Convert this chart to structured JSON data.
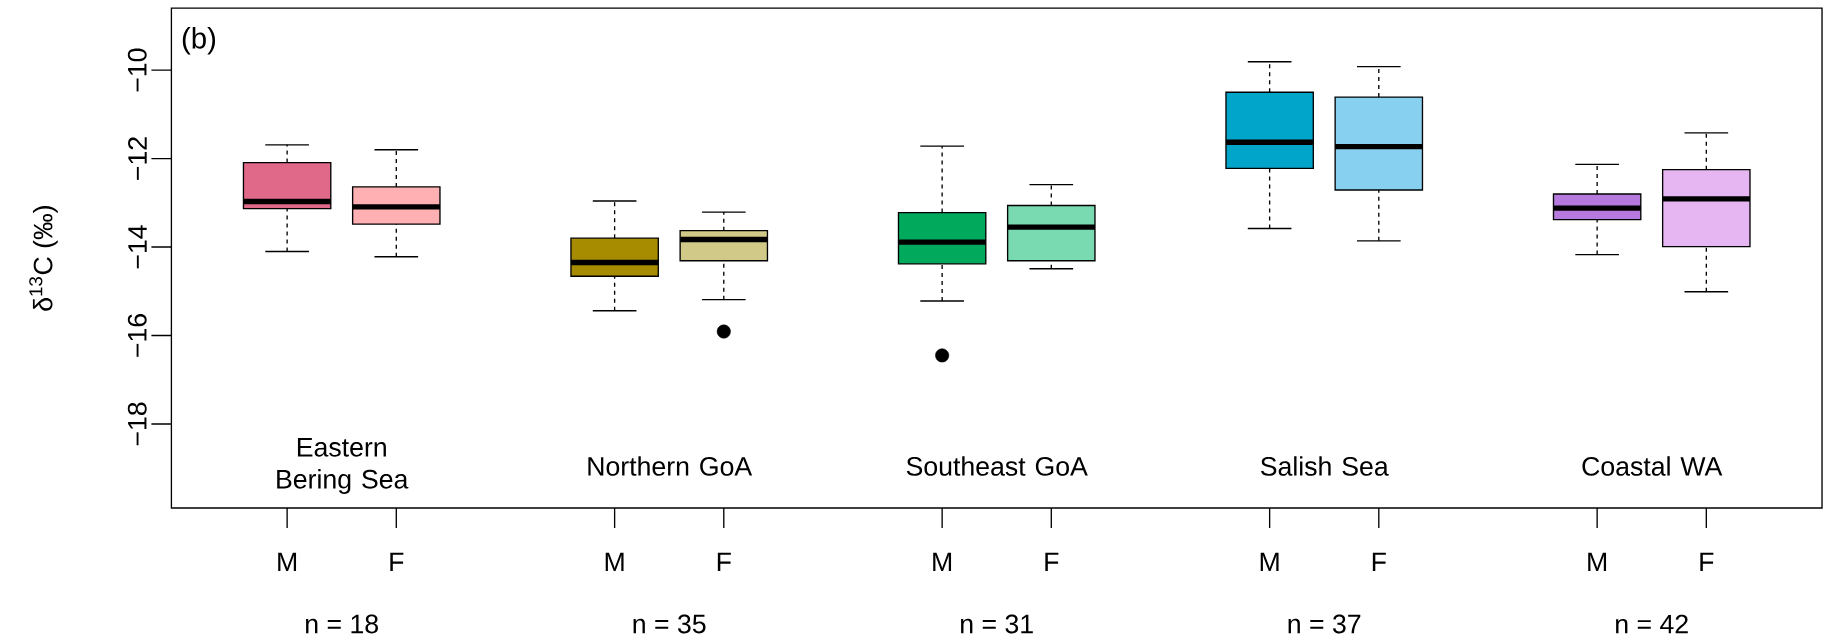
{
  "chart_data": {
    "type": "box",
    "ylabel": "δ$^{13}$C  (‰)",
    "categories": [
      "M",
      "F",
      null,
      "M",
      "F",
      null,
      "M",
      "F",
      null,
      "M",
      "F",
      null,
      "M",
      "F"
    ],
    "colors": [
      "#e0698a",
      "#ffb0b3",
      null,
      "#a88c00",
      "#d1c987",
      null,
      "#00a95c",
      "#79d9b0",
      null,
      "#00a5c9",
      "#88d0f0",
      null,
      "#b679de",
      "#e6b6f2"
    ],
    "boxes": [
      {
        "low": -14.1,
        "q1": -13.13,
        "median": -12.97,
        "q3": -12.09,
        "high": -11.69
      },
      {
        "low": -14.22,
        "q1": -13.48,
        "median": -13.09,
        "q3": -12.64,
        "high": -11.8
      },
      null,
      {
        "low": -15.44,
        "q1": -14.66,
        "median": -14.35,
        "q3": -13.8,
        "high": -12.96
      },
      {
        "low": -15.19,
        "q1": -14.31,
        "median": -13.83,
        "q3": -13.63,
        "high": -13.21,
        "outliers": [
          -15.91
        ]
      },
      null,
      {
        "low": -15.22,
        "q1": -14.38,
        "median": -13.89,
        "q3": -13.22,
        "high": -11.72,
        "outliers": [
          -16.45
        ]
      },
      {
        "low": -14.49,
        "q1": -14.31,
        "median": -13.55,
        "q3": -13.06,
        "high": -12.59
      },
      null,
      {
        "low": -13.58,
        "q1": -12.22,
        "median": -11.63,
        "q3": -10.5,
        "high": -9.81
      },
      {
        "low": -13.86,
        "q1": -12.71,
        "median": -11.73,
        "q3": -10.61,
        "high": -9.92
      },
      null,
      {
        "low": -14.17,
        "q1": -13.38,
        "median": -13.12,
        "q3": -12.8,
        "high": -12.13
      },
      {
        "low": -15.01,
        "q1": -13.99,
        "median": -12.91,
        "q3": -12.25,
        "high": -11.42
      }
    ],
    "ylim": [
      -19.9,
      -8.6
    ],
    "yticks": [
      {
        "value": -18,
        "label": "−18"
      },
      {
        "value": -16,
        "label": "−16"
      },
      {
        "value": -14,
        "label": "−14"
      },
      {
        "value": -12,
        "label": "−12"
      },
      {
        "value": -10,
        "label": "−10"
      }
    ],
    "annotations": [
      "(b)",
      "Eastern Bering Sea",
      "Northern GoA",
      "Southeast GoA",
      "Salish Sea",
      "Coastal WA",
      "n = 18",
      "n = 35",
      "n = 31",
      "n = 37",
      "n = 42"
    ]
  }
}
